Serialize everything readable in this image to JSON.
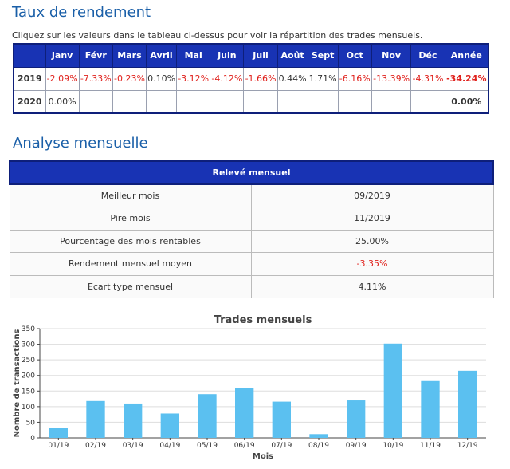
{
  "returns": {
    "title": "Taux de rendement",
    "hint": "Cliquez sur les valeurs dans le tableau ci-dessus pour voir la répartition des trades mensuels.",
    "headers": [
      "",
      "Janv",
      "Févr",
      "Mars",
      "Avril",
      "Mai",
      "Juin",
      "Juil",
      "Août",
      "Sept",
      "Oct",
      "Nov",
      "Déc",
      "Année"
    ],
    "rows": [
      {
        "year": "2019",
        "cells": [
          "-2.09%",
          "-7.33%",
          "-0.23%",
          "0.10%",
          "-3.12%",
          "-4.12%",
          "-1.66%",
          "0.44%",
          "1.71%",
          "-6.16%",
          "-13.39%",
          "-4.31%"
        ],
        "total": "-34.24%"
      },
      {
        "year": "2020",
        "cells": [
          "0.00%",
          "",
          "",
          "",
          "",
          "",
          "",
          "",
          "",
          "",
          "",
          ""
        ],
        "total": "0.00%"
      }
    ]
  },
  "analysis": {
    "title": "Analyse mensuelle",
    "table_header": "Relevé mensuel",
    "rows": [
      {
        "label": "Meilleur mois",
        "value": "09/2019"
      },
      {
        "label": "Pire mois",
        "value": "11/2019"
      },
      {
        "label": "Pourcentage des mois rentables",
        "value": "25.00%"
      },
      {
        "label": "Rendement mensuel moyen",
        "value": "-3.35%"
      },
      {
        "label": "Ecart type mensuel",
        "value": "4.11%"
      }
    ]
  },
  "colors": {
    "header_bg": "#1833b4",
    "negative": "#e0211c",
    "bar": "#5bc0f0",
    "title": "#1a5fa8"
  },
  "chart_data": {
    "type": "bar",
    "title": "Trades mensuels",
    "xlabel": "Mois",
    "ylabel": "Nombre de transactions",
    "categories": [
      "01/19",
      "02/19",
      "03/19",
      "04/19",
      "05/19",
      "06/19",
      "07/19",
      "08/19",
      "09/19",
      "10/19",
      "11/19",
      "12/19"
    ],
    "values": [
      33,
      118,
      110,
      78,
      140,
      160,
      116,
      12,
      120,
      302,
      182,
      215
    ],
    "ylim": [
      0,
      350
    ],
    "yticks": [
      0,
      50,
      100,
      150,
      200,
      250,
      300,
      350
    ],
    "grid": true
  }
}
